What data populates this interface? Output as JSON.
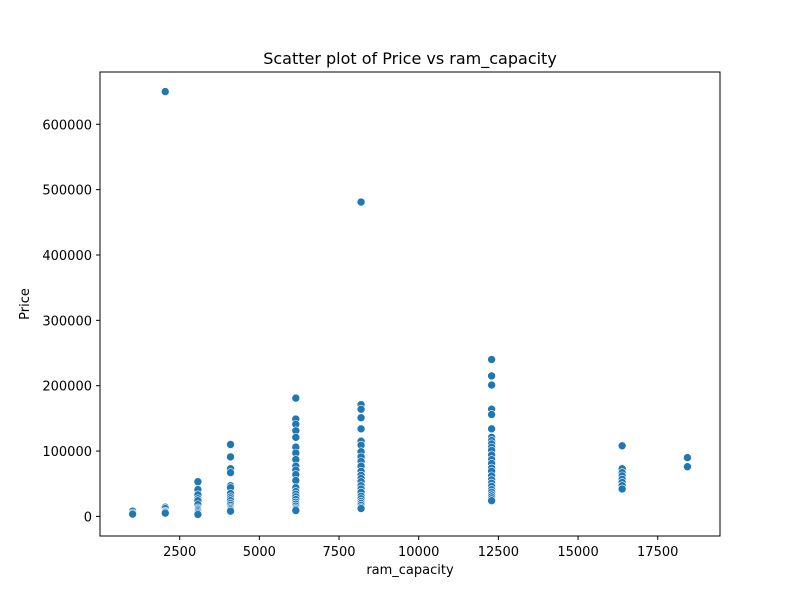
{
  "chart_data": {
    "type": "scatter",
    "title": "Scatter plot of Price vs ram_capacity",
    "xlabel": "ram_capacity",
    "ylabel": "Price",
    "xlim": [
      0,
      19454
    ],
    "ylim": [
      -30000,
      680000
    ],
    "x_ticks": [
      2500,
      5000,
      7500,
      10000,
      12500,
      15000,
      17500
    ],
    "y_ticks": [
      0,
      100000,
      200000,
      300000,
      400000,
      500000,
      600000
    ],
    "color": "#1f77b4",
    "grid": false,
    "legend": "none",
    "points": [
      {
        "x": 1024,
        "y": 8000
      },
      {
        "x": 1024,
        "y": 5000
      },
      {
        "x": 1024,
        "y": 3500
      },
      {
        "x": 2048,
        "y": 650000
      },
      {
        "x": 2048,
        "y": 14000
      },
      {
        "x": 2048,
        "y": 12000
      },
      {
        "x": 2048,
        "y": 8000
      },
      {
        "x": 2048,
        "y": 6500
      },
      {
        "x": 2048,
        "y": 5000
      },
      {
        "x": 3072,
        "y": 53000
      },
      {
        "x": 3072,
        "y": 41000
      },
      {
        "x": 3072,
        "y": 33000
      },
      {
        "x": 3072,
        "y": 27000
      },
      {
        "x": 3072,
        "y": 24000
      },
      {
        "x": 3072,
        "y": 18000
      },
      {
        "x": 3072,
        "y": 13000
      },
      {
        "x": 3072,
        "y": 11000
      },
      {
        "x": 3072,
        "y": 9000
      },
      {
        "x": 3072,
        "y": 7000
      },
      {
        "x": 3072,
        "y": 5000
      },
      {
        "x": 3072,
        "y": 3000
      },
      {
        "x": 4096,
        "y": 110000
      },
      {
        "x": 4096,
        "y": 91000
      },
      {
        "x": 4096,
        "y": 73000
      },
      {
        "x": 4096,
        "y": 67000
      },
      {
        "x": 4096,
        "y": 47000
      },
      {
        "x": 4096,
        "y": 44000
      },
      {
        "x": 4096,
        "y": 35000
      },
      {
        "x": 4096,
        "y": 30000
      },
      {
        "x": 4096,
        "y": 27000
      },
      {
        "x": 4096,
        "y": 24000
      },
      {
        "x": 4096,
        "y": 20000
      },
      {
        "x": 4096,
        "y": 17000
      },
      {
        "x": 4096,
        "y": 14000
      },
      {
        "x": 4096,
        "y": 12000
      },
      {
        "x": 4096,
        "y": 10000
      },
      {
        "x": 4096,
        "y": 8000
      },
      {
        "x": 6144,
        "y": 181000
      },
      {
        "x": 6144,
        "y": 149000
      },
      {
        "x": 6144,
        "y": 141000
      },
      {
        "x": 6144,
        "y": 131000
      },
      {
        "x": 6144,
        "y": 121000
      },
      {
        "x": 6144,
        "y": 106000
      },
      {
        "x": 6144,
        "y": 97000
      },
      {
        "x": 6144,
        "y": 87000
      },
      {
        "x": 6144,
        "y": 77000
      },
      {
        "x": 6144,
        "y": 71000
      },
      {
        "x": 6144,
        "y": 64000
      },
      {
        "x": 6144,
        "y": 55000
      },
      {
        "x": 6144,
        "y": 44000
      },
      {
        "x": 6144,
        "y": 38000
      },
      {
        "x": 6144,
        "y": 34000
      },
      {
        "x": 6144,
        "y": 30000
      },
      {
        "x": 6144,
        "y": 26000
      },
      {
        "x": 6144,
        "y": 22000
      },
      {
        "x": 6144,
        "y": 19000
      },
      {
        "x": 6144,
        "y": 16000
      },
      {
        "x": 6144,
        "y": 13000
      },
      {
        "x": 6144,
        "y": 11000
      },
      {
        "x": 6144,
        "y": 9000
      },
      {
        "x": 8192,
        "y": 481000
      },
      {
        "x": 8192,
        "y": 171000
      },
      {
        "x": 8192,
        "y": 164000
      },
      {
        "x": 8192,
        "y": 151000
      },
      {
        "x": 8192,
        "y": 134000
      },
      {
        "x": 8192,
        "y": 115000
      },
      {
        "x": 8192,
        "y": 109000
      },
      {
        "x": 8192,
        "y": 99000
      },
      {
        "x": 8192,
        "y": 91000
      },
      {
        "x": 8192,
        "y": 84000
      },
      {
        "x": 8192,
        "y": 77000
      },
      {
        "x": 8192,
        "y": 69000
      },
      {
        "x": 8192,
        "y": 63000
      },
      {
        "x": 8192,
        "y": 58000
      },
      {
        "x": 8192,
        "y": 53000
      },
      {
        "x": 8192,
        "y": 47000
      },
      {
        "x": 8192,
        "y": 42000
      },
      {
        "x": 8192,
        "y": 37000
      },
      {
        "x": 8192,
        "y": 31000
      },
      {
        "x": 8192,
        "y": 27000
      },
      {
        "x": 8192,
        "y": 23000
      },
      {
        "x": 8192,
        "y": 20000
      },
      {
        "x": 8192,
        "y": 17000
      },
      {
        "x": 8192,
        "y": 14000
      },
      {
        "x": 8192,
        "y": 12000
      },
      {
        "x": 12288,
        "y": 240000
      },
      {
        "x": 12288,
        "y": 215000
      },
      {
        "x": 12288,
        "y": 201000
      },
      {
        "x": 12288,
        "y": 164000
      },
      {
        "x": 12288,
        "y": 156000
      },
      {
        "x": 12288,
        "y": 134000
      },
      {
        "x": 12288,
        "y": 121000
      },
      {
        "x": 12288,
        "y": 116000
      },
      {
        "x": 12288,
        "y": 111000
      },
      {
        "x": 12288,
        "y": 106000
      },
      {
        "x": 12288,
        "y": 101000
      },
      {
        "x": 12288,
        "y": 94000
      },
      {
        "x": 12288,
        "y": 87000
      },
      {
        "x": 12288,
        "y": 81000
      },
      {
        "x": 12288,
        "y": 74000
      },
      {
        "x": 12288,
        "y": 69000
      },
      {
        "x": 12288,
        "y": 62000
      },
      {
        "x": 12288,
        "y": 56000
      },
      {
        "x": 12288,
        "y": 51000
      },
      {
        "x": 12288,
        "y": 46000
      },
      {
        "x": 12288,
        "y": 41000
      },
      {
        "x": 12288,
        "y": 37000
      },
      {
        "x": 12288,
        "y": 33000
      },
      {
        "x": 12288,
        "y": 30000
      },
      {
        "x": 12288,
        "y": 27000
      },
      {
        "x": 12288,
        "y": 24000
      },
      {
        "x": 16384,
        "y": 108000
      },
      {
        "x": 16384,
        "y": 73000
      },
      {
        "x": 16384,
        "y": 67000
      },
      {
        "x": 16384,
        "y": 62000
      },
      {
        "x": 16384,
        "y": 57000
      },
      {
        "x": 16384,
        "y": 52000
      },
      {
        "x": 16384,
        "y": 47000
      },
      {
        "x": 16384,
        "y": 42000
      },
      {
        "x": 18432,
        "y": 90000
      },
      {
        "x": 18432,
        "y": 76000
      }
    ]
  }
}
